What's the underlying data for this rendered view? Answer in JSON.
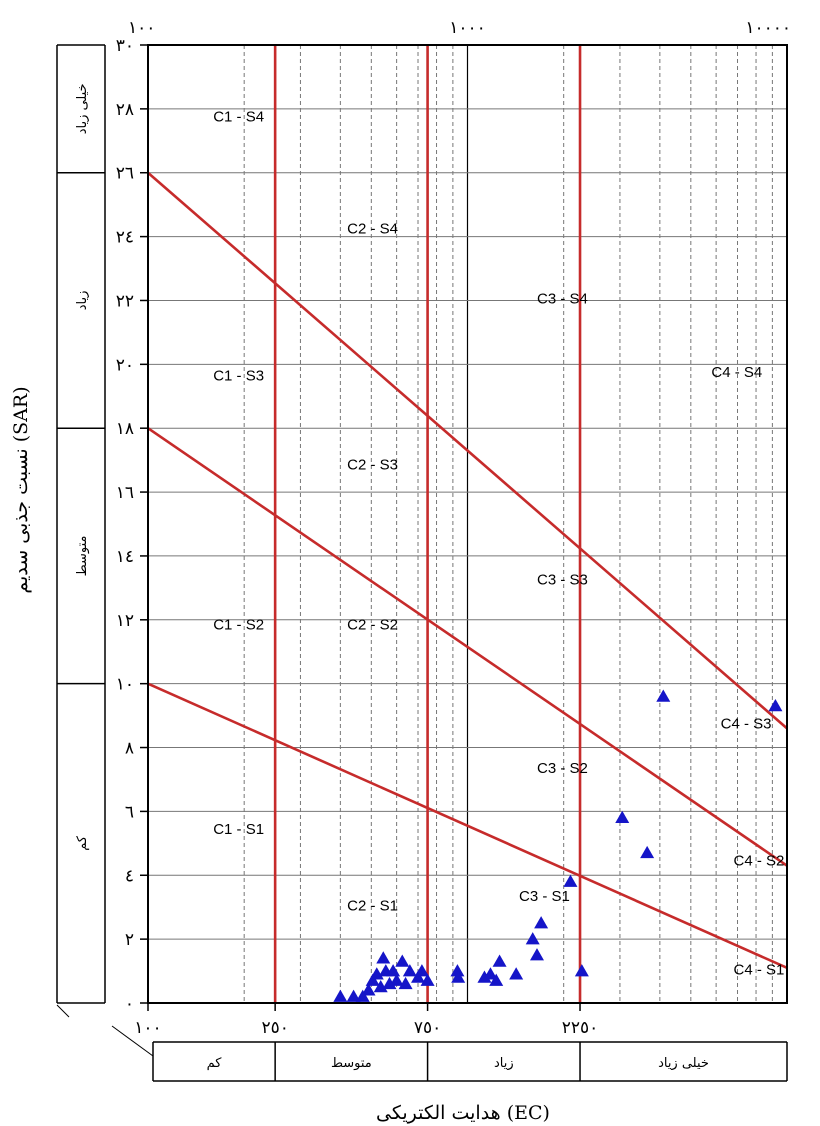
{
  "chart_data": {
    "type": "scatter",
    "x_axis": {
      "title": "هدایت الکتریکی (EC)",
      "scale": "log",
      "range": [
        100,
        10000
      ],
      "top_tick_labels": [
        "١٠٠",
        "١٠٠٠",
        "١٠٠٠٠"
      ],
      "bottom_tick_labels": [
        "١٠٠",
        "٢٥٠",
        "٧٥٠",
        "٢٢٥٠"
      ],
      "classes": [
        "کم",
        "متوسط",
        "زیاد",
        "خیلی زیاد"
      ],
      "class_bounds": [
        100,
        250,
        750,
        2250,
        10000
      ]
    },
    "y_axis": {
      "title": "نسبت جذبی سدیم (SAR)",
      "range": [
        0,
        30
      ],
      "tick_labels": [
        "٠",
        "٢",
        "٤",
        "٦",
        "٨",
        "١٠",
        "١٢",
        "١٤",
        "١٦",
        "١٨",
        "٢٠",
        "٢٢",
        "٢٤",
        "٢٦",
        "٢٨",
        "٣٠"
      ],
      "classes": [
        "کم",
        "متوسط",
        "زیاد",
        "خیلی زیاد"
      ]
    },
    "grid": true,
    "class_lines": {
      "ec_vertical": [
        250,
        750,
        2250
      ],
      "sar_diagonals": [
        {
          "from": [
            100,
            26
          ],
          "to": [
            10000,
            8.6
          ]
        },
        {
          "from": [
            100,
            18
          ],
          "to": [
            10000,
            4.3
          ]
        },
        {
          "from": [
            100,
            10
          ],
          "to": [
            10000,
            1.1
          ]
        }
      ]
    },
    "zone_labels": [
      {
        "text": "C1 - S4",
        "x": 160,
        "sar": 27.6
      },
      {
        "text": "C2 - S4",
        "x": 420,
        "sar": 24.1
      },
      {
        "text": "C3 - S4",
        "x": 1650,
        "sar": 21.9
      },
      {
        "text": "C4 - S4",
        "x": 5800,
        "sar": 19.6
      },
      {
        "text": "C1 - S3",
        "x": 160,
        "sar": 19.5
      },
      {
        "text": "C2 - S3",
        "x": 420,
        "sar": 16.7
      },
      {
        "text": "C3 - S3",
        "x": 1650,
        "sar": 13.1
      },
      {
        "text": "C4 - S3",
        "x": 6200,
        "sar": 8.6
      },
      {
        "text": "C1 - S2",
        "x": 160,
        "sar": 11.7
      },
      {
        "text": "C2 - S2",
        "x": 420,
        "sar": 11.7
      },
      {
        "text": "C3 - S2",
        "x": 1650,
        "sar": 7.2
      },
      {
        "text": "C4 - S2",
        "x": 6800,
        "sar": 4.3
      },
      {
        "text": "C1 - S1",
        "x": 160,
        "sar": 5.3
      },
      {
        "text": "C2 - S1",
        "x": 420,
        "sar": 2.9
      },
      {
        "text": "C3 - S1",
        "x": 1450,
        "sar": 3.2
      },
      {
        "text": "C4 - S1",
        "x": 6800,
        "sar": 0.9
      }
    ],
    "points": [
      {
        "x": 400,
        "sar": 0.2
      },
      {
        "x": 440,
        "sar": 0.2
      },
      {
        "x": 470,
        "sar": 0.2
      },
      {
        "x": 490,
        "sar": 0.4
      },
      {
        "x": 505,
        "sar": 0.7
      },
      {
        "x": 520,
        "sar": 0.9
      },
      {
        "x": 535,
        "sar": 0.5
      },
      {
        "x": 545,
        "sar": 1.4
      },
      {
        "x": 555,
        "sar": 1.0
      },
      {
        "x": 570,
        "sar": 0.6
      },
      {
        "x": 585,
        "sar": 1.0
      },
      {
        "x": 600,
        "sar": 0.7
      },
      {
        "x": 625,
        "sar": 1.3
      },
      {
        "x": 640,
        "sar": 0.6
      },
      {
        "x": 660,
        "sar": 1.0
      },
      {
        "x": 700,
        "sar": 0.8
      },
      {
        "x": 720,
        "sar": 1.0
      },
      {
        "x": 750,
        "sar": 0.7
      },
      {
        "x": 930,
        "sar": 1.0
      },
      {
        "x": 935,
        "sar": 0.8
      },
      {
        "x": 1130,
        "sar": 0.8
      },
      {
        "x": 1180,
        "sar": 0.9
      },
      {
        "x": 1230,
        "sar": 0.7
      },
      {
        "x": 1260,
        "sar": 1.3
      },
      {
        "x": 1420,
        "sar": 0.9
      },
      {
        "x": 1600,
        "sar": 2.0
      },
      {
        "x": 1650,
        "sar": 1.5
      },
      {
        "x": 1700,
        "sar": 2.5
      },
      {
        "x": 2100,
        "sar": 3.8
      },
      {
        "x": 2280,
        "sar": 1.0
      },
      {
        "x": 3050,
        "sar": 5.8
      },
      {
        "x": 3650,
        "sar": 4.7
      },
      {
        "x": 4100,
        "sar": 9.6
      },
      {
        "x": 9200,
        "sar": 9.3
      }
    ],
    "colors": {
      "class_lines": "#c62b2b",
      "points": "#1515c8",
      "grid": "#777777"
    }
  }
}
